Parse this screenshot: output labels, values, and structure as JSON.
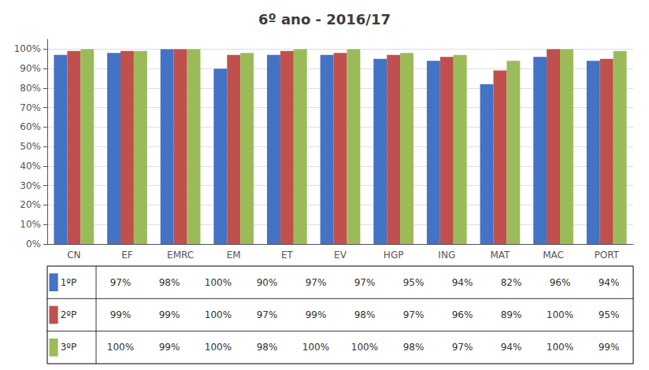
{
  "chart_data": {
    "type": "bar",
    "title": "6º ano - 2016/17",
    "categories": [
      "CN",
      "EF",
      "EMRC",
      "EM",
      "ET",
      "EV",
      "HGP",
      "ING",
      "MAT",
      "MAC",
      "PORT"
    ],
    "series": [
      {
        "name": "1ºP",
        "color": "#4472C4",
        "values": [
          97,
          98,
          100,
          90,
          97,
          97,
          95,
          94,
          82,
          96,
          94
        ],
        "value_labels": [
          "97%",
          "98%",
          "100%",
          "90%",
          "97%",
          "97%",
          "95%",
          "94%",
          "82%",
          "96%",
          "94%"
        ]
      },
      {
        "name": "2ºP",
        "color": "#C0504D",
        "values": [
          99,
          99,
          100,
          97,
          99,
          98,
          97,
          96,
          89,
          100,
          95
        ],
        "value_labels": [
          "99%",
          "99%",
          "100%",
          "97%",
          "99%",
          "98%",
          "97%",
          "96%",
          "89%",
          "100%",
          "95%"
        ]
      },
      {
        "name": "3ºP",
        "color": "#9BBB59",
        "values": [
          100,
          99,
          100,
          98,
          100,
          100,
          98,
          97,
          94,
          100,
          99
        ],
        "value_labels": [
          "100%",
          "99%",
          "100%",
          "98%",
          "100%",
          "100%",
          "98%",
          "97%",
          "94%",
          "100%",
          "99%"
        ]
      }
    ],
    "ylim": [
      0,
      105
    ],
    "yticks": [
      {
        "value": 0,
        "label": "0%"
      },
      {
        "value": 10,
        "label": "10%"
      },
      {
        "value": 20,
        "label": "20%"
      },
      {
        "value": 30,
        "label": "30%"
      },
      {
        "value": 40,
        "label": "40%"
      },
      {
        "value": 50,
        "label": "50%"
      },
      {
        "value": 60,
        "label": "60%"
      },
      {
        "value": 70,
        "label": "70%"
      },
      {
        "value": 80,
        "label": "80%"
      },
      {
        "value": 90,
        "label": "90%"
      },
      {
        "value": 100,
        "label": "100%"
      }
    ],
    "grid": true
  }
}
